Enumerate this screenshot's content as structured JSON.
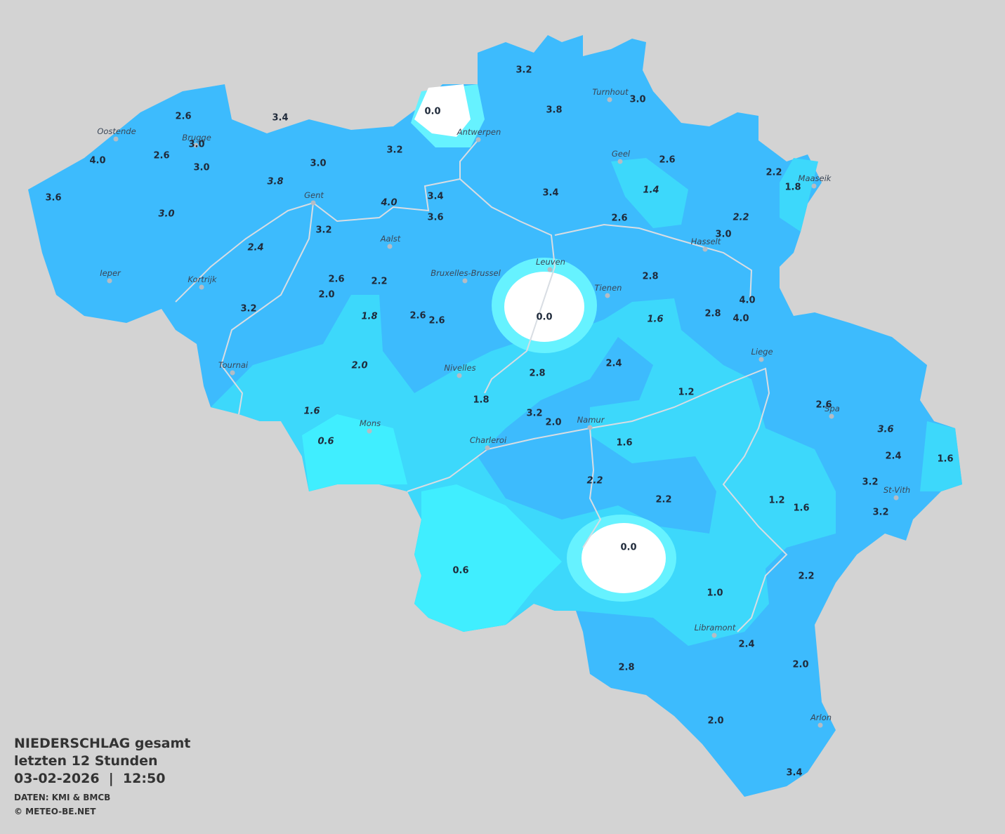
{
  "title": {
    "line1": "NIEDERSCHLAG gesamt",
    "line2": "letzten 12 Stunden",
    "line3": "03-02-2026  |  12:50"
  },
  "footer": {
    "source": "DATEN: KMI & BMCB",
    "copyright": "© METEO-BE.NET"
  },
  "cities": [
    "Oostende",
    "Brugge",
    "Antwerpen",
    "Turnhout",
    "Geel",
    "Maaseik",
    "Gent",
    "Aalst",
    "Hasselt",
    "Leuven",
    "Ieper",
    "Kortrijk",
    "Bruxelles-Brussel",
    "Tienen",
    "Liege",
    "Tournai",
    "Nivelles",
    "Spa",
    "Namur",
    "Mons",
    "Charleroi",
    "St-Vith",
    "Libramont",
    "Arlon"
  ],
  "stations": [
    "3.2",
    "0.0",
    "3.8",
    "3.0",
    "2.6",
    "3.4",
    "3.0",
    "2.6",
    "3.0",
    "4.0",
    "3.2",
    "3.0",
    "2.6",
    "2.2",
    "1.8",
    "3.8",
    "3.6",
    "3.4",
    "3.4",
    "1.4",
    "4.0",
    "3.0",
    "3.6",
    "2.6",
    "2.2",
    "3.2",
    "3.0",
    "2.4",
    "2.8",
    "2.6",
    "2.2",
    "2.0",
    "4.0",
    "3.2",
    "0.0",
    "2.8",
    "1.8",
    "2.6",
    "2.6",
    "1.6",
    "4.0",
    "2.0",
    "2.4",
    "2.8",
    "1.2",
    "1.8",
    "1.6",
    "3.2",
    "2.0",
    "2.6",
    "3.6",
    "0.6",
    "1.6",
    "2.4",
    "1.6",
    "2.2",
    "3.2",
    "2.2",
    "1.2",
    "1.6",
    "3.2",
    "0.0",
    "0.6",
    "2.2",
    "1.0",
    "2.4",
    "2.8",
    "2.0",
    "2.0",
    "3.4"
  ]
}
